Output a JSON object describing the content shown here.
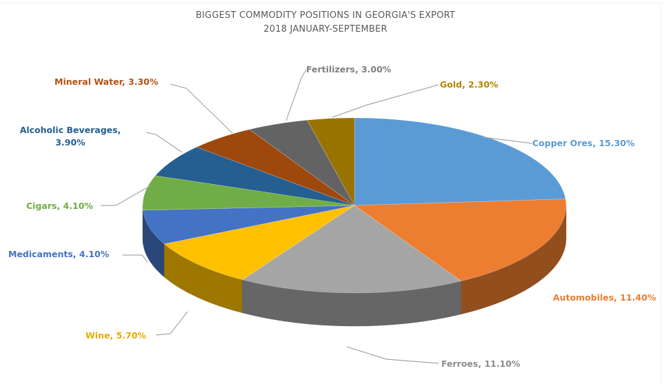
{
  "chart_data": {
    "type": "pie",
    "title": "BIGGEST COMMODITY POSITIONS IN GEORGIA'S EXPORT",
    "subtitle": "2018 JANUARY-SEPTEMBER",
    "three_d": true,
    "legend": "none",
    "slices": [
      {
        "name": "Copper Ores",
        "value": 15.3,
        "label": "Copper  Ores, 15.30%",
        "color": "#5b9bd5",
        "label_color": "#5b9bd5"
      },
      {
        "name": "Automobiles",
        "value": 11.4,
        "label": "Automobiles,  11.40%",
        "color": "#ed7d31",
        "label_color": "#ed7d31"
      },
      {
        "name": "Ferroes",
        "value": 11.1,
        "label": "Ferroes, 11.10%",
        "color": "#a5a5a5",
        "label_color": "#8c8c8c"
      },
      {
        "name": "Wine",
        "value": 5.7,
        "label": "Wine, 5.70%",
        "color": "#ffc000",
        "label_color": "#e6ac00"
      },
      {
        "name": "Medicaments",
        "value": 4.1,
        "label": "Medicaments, 4.10%",
        "color": "#4472c4",
        "label_color": "#4472c4"
      },
      {
        "name": "Cigars",
        "value": 4.1,
        "label": "Cigars, 4.10%",
        "color": "#70ad47",
        "label_color": "#70ad47"
      },
      {
        "name": "Alcoholic Beverages",
        "value": 3.9,
        "label": [
          "Alcoholic Beverages,",
          "3.90%"
        ],
        "color": "#255e91",
        "label_color": "#255e91"
      },
      {
        "name": "Mineral Water",
        "value": 3.3,
        "label": "Mineral Water, 3.30%",
        "color": "#9e480e",
        "label_color": "#b5520f"
      },
      {
        "name": "Fertilizers",
        "value": 3.0,
        "label": "Fertilizers, 3.00%",
        "color": "#636363",
        "label_color": "#7f7f7f"
      },
      {
        "name": "Gold",
        "value": 2.3,
        "label": "Gold, 2.30%",
        "color": "#997300",
        "label_color": "#b38600"
      }
    ]
  }
}
